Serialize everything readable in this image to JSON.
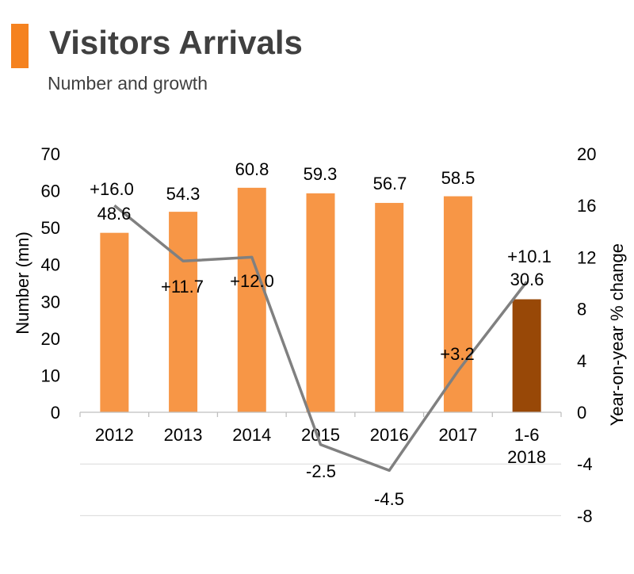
{
  "header": {
    "title": "Visitors Arrivals",
    "subtitle": "Number and growth",
    "accent_color": "#F5821F"
  },
  "chart_data": {
    "type": "bar",
    "title": "Visitors Arrivals",
    "subtitle": "Number and growth",
    "categories": [
      [
        "2012"
      ],
      [
        "2013"
      ],
      [
        "2014"
      ],
      [
        "2015"
      ],
      [
        "2016"
      ],
      [
        "2017"
      ],
      [
        "1-6",
        "2018"
      ]
    ],
    "series": [
      {
        "type": "bar",
        "axis": "left",
        "values": [
          48.6,
          54.3,
          60.8,
          59.3,
          56.7,
          58.5,
          30.6
        ],
        "labels": [
          "48.6",
          "54.3",
          "60.8",
          "59.3",
          "56.7",
          "58.5",
          "30.6"
        ],
        "colors": [
          "#F79646",
          "#F79646",
          "#F79646",
          "#F79646",
          "#F79646",
          "#F79646",
          "#984807"
        ]
      },
      {
        "type": "line",
        "axis": "right",
        "values": [
          16.0,
          11.7,
          12.0,
          -2.5,
          -4.5,
          3.2,
          10.1
        ],
        "labels": [
          "+16.0",
          "+11.7",
          "+12.0",
          "-2.5",
          "-4.5",
          "+3.2",
          "+10.1"
        ],
        "color": "#808080"
      }
    ],
    "ylabel": "Number (mn)",
    "ylim": [
      0,
      70
    ],
    "yticks": [
      "0",
      "10",
      "20",
      "30",
      "40",
      "50",
      "60",
      "70"
    ],
    "y2label": "Year-on-year % change",
    "y2lim": [
      -8,
      20
    ],
    "y2ticks": [
      "20",
      "16",
      "12",
      "8",
      "4",
      "0",
      "-4",
      "-8"
    ],
    "grid": true
  }
}
